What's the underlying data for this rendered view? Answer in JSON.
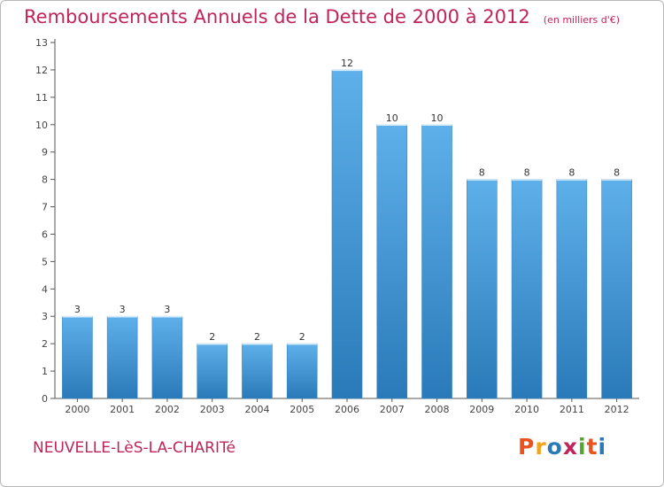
{
  "header": {
    "title": "Remboursements Annuels de la Dette de 2000 à 2012",
    "unit": "(en milliers d'€)"
  },
  "footer": {
    "commune": "NEUVELLE-LèS-LA-CHARITé",
    "brand": "Proxiti"
  },
  "colors": {
    "title": "#c0245a",
    "bar_top": "#5eb0ea",
    "bar_bottom": "#2a7ab9",
    "logo_letters": [
      "#e8531f",
      "#f5a31a",
      "#2a7ab9",
      "#c0245a",
      "#55a532",
      "#e8531f",
      "#2a7ab9"
    ]
  },
  "chart_data": {
    "type": "bar",
    "title": "Remboursements Annuels de la Dette de 2000 à 2012",
    "xlabel": "",
    "ylabel": "",
    "categories": [
      "2000",
      "2001",
      "2002",
      "2003",
      "2004",
      "2005",
      "2006",
      "2007",
      "2008",
      "2009",
      "2010",
      "2011",
      "2012"
    ],
    "values": [
      3,
      3,
      3,
      2,
      2,
      2,
      12,
      10,
      10,
      8,
      8,
      8,
      8
    ],
    "ylim": [
      0,
      13
    ],
    "yticks": [
      0,
      1,
      2,
      3,
      4,
      5,
      6,
      7,
      8,
      9,
      10,
      11,
      12,
      13
    ],
    "grid": false,
    "legend": "none"
  }
}
